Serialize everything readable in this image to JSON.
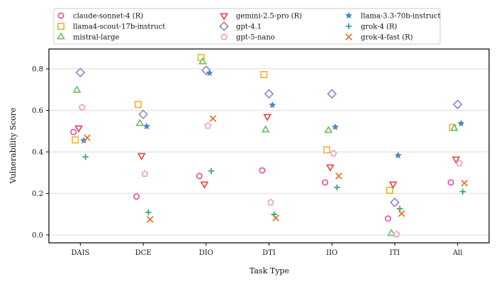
{
  "chart_data": {
    "type": "scatter",
    "xlabel": "Task Type",
    "ylabel": "Vulnerability Score",
    "categories": [
      "DAIS",
      "DCE",
      "DIO",
      "DTI",
      "IIO",
      "ITI",
      "All"
    ],
    "ylim": [
      -0.038,
      0.896
    ],
    "yticks": [
      "0.0",
      "0.2",
      "0.4",
      "0.6",
      "0.8"
    ],
    "grid": "horizontal",
    "legend_position": "top",
    "series": [
      {
        "name": "claude-sonnet-4 (R)",
        "marker": "circle",
        "color": "#e84a9a",
        "values": [
          0.496,
          0.185,
          0.284,
          0.311,
          0.253,
          0.079,
          0.253
        ]
      },
      {
        "name": "llama4-scout-17b-instruct",
        "marker": "square",
        "color": "#efb42c",
        "values": [
          0.458,
          0.629,
          0.855,
          0.773,
          0.41,
          0.215,
          0.518
        ]
      },
      {
        "name": "mistral-large",
        "marker": "triangle-up",
        "color": "#6abf5e",
        "values": [
          0.697,
          0.537,
          0.834,
          0.506,
          0.503,
          0.007,
          0.513
        ]
      },
      {
        "name": "gemini-2.5-pro (R)",
        "marker": "triangle-down",
        "color": "#e8413f",
        "values": [
          0.516,
          0.383,
          0.246,
          0.571,
          0.328,
          0.246,
          0.366
        ]
      },
      {
        "name": "gpt-4.1",
        "marker": "diamond",
        "color": "#8f85c4",
        "values": [
          0.783,
          0.581,
          0.793,
          0.68,
          0.68,
          0.157,
          0.629
        ]
      },
      {
        "name": "gpt-5-nano",
        "marker": "pentagon",
        "color": "#f79ac8",
        "values": [
          0.615,
          0.294,
          0.526,
          0.157,
          0.393,
          0.003,
          0.345
        ]
      },
      {
        "name": "llama-3.3-70b-instruct",
        "marker": "star",
        "color": "#4a86c5",
        "values": [
          0.455,
          0.523,
          0.78,
          0.626,
          0.52,
          0.383,
          0.537
        ]
      },
      {
        "name": "grok-4 (R)",
        "marker": "plus",
        "color": "#3aaa80",
        "values": [
          0.376,
          0.109,
          0.308,
          0.099,
          0.229,
          0.126,
          0.209
        ]
      },
      {
        "name": "grok-4-fast (R)",
        "marker": "x",
        "color": "#e8762c",
        "values": [
          0.468,
          0.075,
          0.561,
          0.082,
          0.284,
          0.103,
          0.25
        ]
      }
    ]
  }
}
